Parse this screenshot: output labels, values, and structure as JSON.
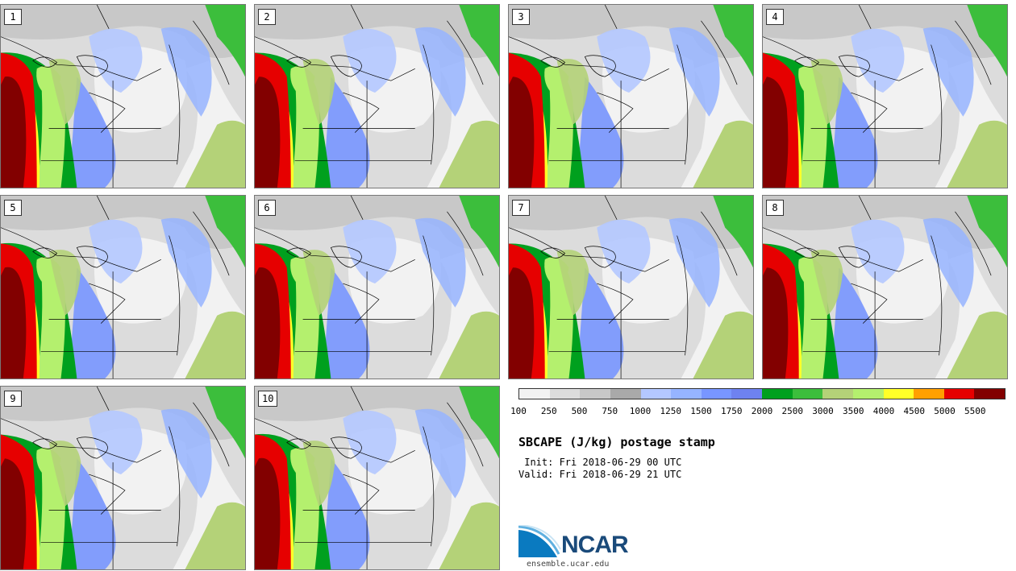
{
  "panels": [
    {
      "label": "1"
    },
    {
      "label": "2"
    },
    {
      "label": "3"
    },
    {
      "label": "4"
    },
    {
      "label": "5"
    },
    {
      "label": "6"
    },
    {
      "label": "7"
    },
    {
      "label": "8"
    },
    {
      "label": "9"
    },
    {
      "label": "10"
    }
  ],
  "colorbar": {
    "colors": [
      "#f2f2f2",
      "#dcdcdc",
      "#c8c8c8",
      "#a9a9a9",
      "#b4c8ff",
      "#96b4ff",
      "#7896ff",
      "#6e82f0",
      "#00a01e",
      "#3cbe3c",
      "#b4d278",
      "#b4f06e",
      "#ffff28",
      "#ffa000",
      "#e60000",
      "#820000"
    ],
    "ticks": [
      "100",
      "250",
      "500",
      "750",
      "1000",
      "1250",
      "1500",
      "1750",
      "2000",
      "2500",
      "3000",
      "3500",
      "4000",
      "4500",
      "5000",
      "5500"
    ]
  },
  "title": "SBCAPE (J/kg) postage stamp",
  "init": " Init: Fri 2018-06-29 00 UTC",
  "valid": "Valid: Fri 2018-06-29 21 UTC",
  "logo": {
    "name": "NCAR",
    "url": "ensemble.ucar.edu"
  }
}
